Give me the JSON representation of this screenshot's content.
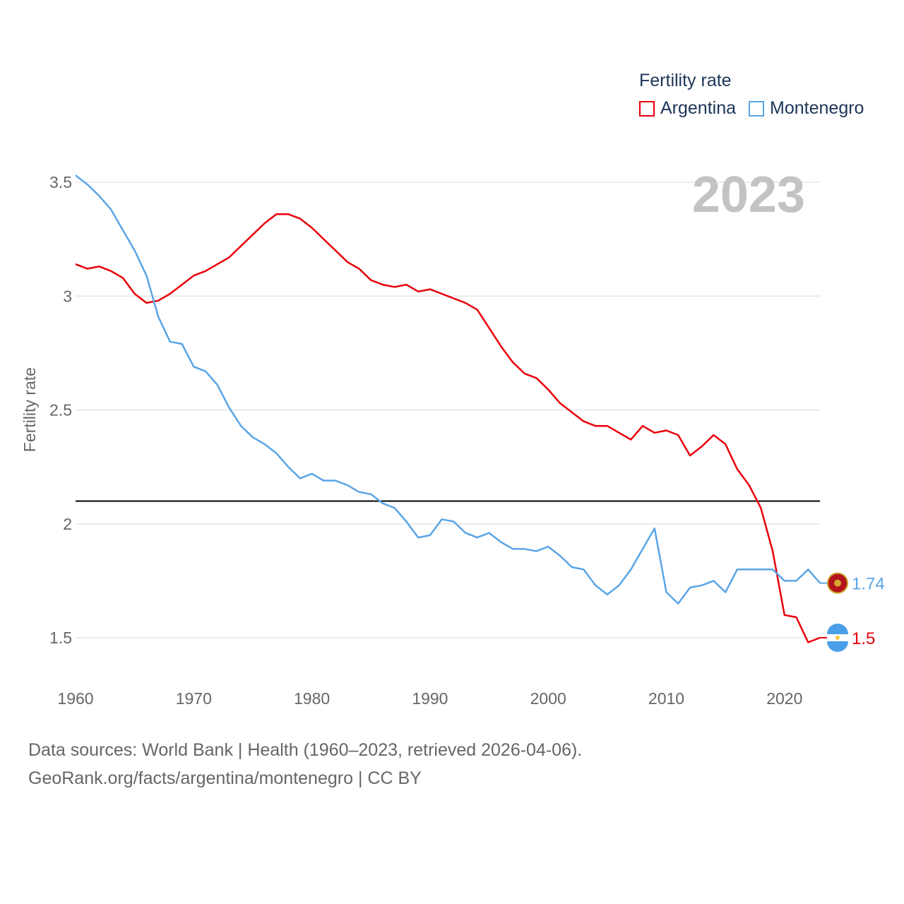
{
  "legend": {
    "title": "Fertility rate",
    "items": [
      {
        "label": "Argentina",
        "color": "#e8000b"
      },
      {
        "label": "Montenegro",
        "color": "#5aa5e5"
      }
    ]
  },
  "footer": {
    "line1": "Data sources: World Bank | Health (1960–2023, retrieved 2026-04-06).",
    "line2": "GeoRank.org/facts/argentina/montenegro | CC BY"
  },
  "chart_data": {
    "type": "line",
    "title": "",
    "year_label": "2023",
    "xlabel": "",
    "ylabel": "Fertility rate",
    "xlim": [
      1960,
      2023
    ],
    "ylim": [
      1.35,
      3.6
    ],
    "x_ticks": [
      "1960",
      "1970",
      "1980",
      "1990",
      "2000",
      "2010",
      "2020"
    ],
    "y_ticks": [
      "1.5",
      "2",
      "2.5",
      "3",
      "3.5"
    ],
    "reference_line": {
      "y": 2.1,
      "color": "#000000"
    },
    "grid": true,
    "legend_position": "top-right",
    "x": [
      1960,
      1961,
      1962,
      1963,
      1964,
      1965,
      1966,
      1967,
      1968,
      1969,
      1970,
      1971,
      1972,
      1973,
      1974,
      1975,
      1976,
      1977,
      1978,
      1979,
      1980,
      1981,
      1982,
      1983,
      1984,
      1985,
      1986,
      1987,
      1988,
      1989,
      1990,
      1991,
      1992,
      1993,
      1994,
      1995,
      1996,
      1997,
      1998,
      1999,
      2000,
      2001,
      2002,
      2003,
      2004,
      2005,
      2006,
      2007,
      2008,
      2009,
      2010,
      2011,
      2012,
      2013,
      2014,
      2015,
      2016,
      2017,
      2018,
      2019,
      2020,
      2021,
      2022,
      2023
    ],
    "series": [
      {
        "name": "Argentina",
        "color": "#e8000b",
        "end_label": "1.5",
        "values": [
          3.14,
          3.12,
          3.13,
          3.11,
          3.08,
          3.01,
          2.97,
          2.98,
          3.01,
          3.05,
          3.09,
          3.11,
          3.14,
          3.17,
          3.22,
          3.27,
          3.32,
          3.36,
          3.36,
          3.34,
          3.3,
          3.25,
          3.2,
          3.15,
          3.12,
          3.07,
          3.05,
          3.04,
          3.05,
          3.02,
          3.03,
          3.01,
          2.99,
          2.97,
          2.94,
          2.86,
          2.78,
          2.71,
          2.66,
          2.64,
          2.59,
          2.53,
          2.49,
          2.45,
          2.43,
          2.43,
          2.4,
          2.37,
          2.43,
          2.4,
          2.41,
          2.39,
          2.3,
          2.34,
          2.39,
          2.35,
          2.24,
          2.17,
          2.07,
          1.88,
          1.6,
          1.59,
          1.48,
          1.5
        ]
      },
      {
        "name": "Montenegro",
        "color": "#5aa5e5",
        "end_label": "1.74",
        "values": [
          3.53,
          3.49,
          3.44,
          3.38,
          3.29,
          3.2,
          3.09,
          2.91,
          2.8,
          2.79,
          2.69,
          2.67,
          2.61,
          2.51,
          2.43,
          2.38,
          2.35,
          2.31,
          2.25,
          2.2,
          2.22,
          2.19,
          2.19,
          2.17,
          2.14,
          2.13,
          2.09,
          2.07,
          2.01,
          1.94,
          1.95,
          2.02,
          2.01,
          1.96,
          1.94,
          1.96,
          1.92,
          1.89,
          1.89,
          1.88,
          1.9,
          1.86,
          1.81,
          1.8,
          1.73,
          1.69,
          1.73,
          1.8,
          1.89,
          1.98,
          1.7,
          1.65,
          1.72,
          1.73,
          1.75,
          1.7,
          1.8,
          1.8,
          1.8,
          1.8,
          1.75,
          1.75,
          1.8,
          1.74
        ]
      }
    ]
  }
}
